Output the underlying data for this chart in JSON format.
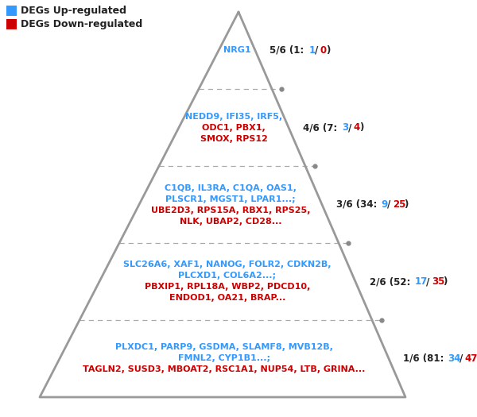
{
  "legend": [
    {
      "label": "DEGs Up-regulated",
      "color": "#3399FF"
    },
    {
      "label": "DEGs Down-regulated",
      "color": "#CC0000"
    }
  ],
  "levels": [
    {
      "level": 5,
      "label_black1": "5/6 (1:",
      "label_up": "1",
      "label_slash": "/",
      "label_down": "0",
      "label_black2": ")",
      "up_lines": [
        "NRG1"
      ],
      "down_lines": []
    },
    {
      "level": 4,
      "label_black1": "4/6 (7:",
      "label_up": "3",
      "label_slash": "/",
      "label_down": "4",
      "label_black2": ")",
      "up_lines": [
        "NEDD9, IFI35, IRF5,"
      ],
      "down_lines": [
        "ODC1, PBX1,",
        "SMOX, RPS12"
      ]
    },
    {
      "level": 3,
      "label_black1": "3/6 (34:",
      "label_up": "9",
      "label_slash": "/",
      "label_down": "25",
      "label_black2": ")",
      "up_lines": [
        "C1QB, IL3RA, C1QA, OAS1,",
        "PLSCR1, MGST1, LPAR1...;"
      ],
      "down_lines": [
        "UBE2D3, RPS15A, RBX1, RPS25,",
        "NLK, UBAP2, CD28..."
      ]
    },
    {
      "level": 2,
      "label_black1": "2/6 (52:",
      "label_up": "17",
      "label_slash": "/",
      "label_down": "35",
      "label_black2": ")",
      "up_lines": [
        "SLC26A6, XAF1, NANOG, FOLR2, CDKN2B,",
        "PLCXD1, COL6A2...;"
      ],
      "down_lines": [
        "PBXIP1, RPL18A, WBP2, PDCD10,",
        "ENDOD1, OA21, BRAP..."
      ]
    },
    {
      "level": 1,
      "label_black1": "1/6 (81:",
      "label_up": "34",
      "label_slash": "/",
      "label_down": "47",
      "label_black2": ")",
      "up_lines": [
        "PLXDC1, PARP9, GSDMA, SLAMF8, MVB12B,",
        "FMNL2, CYP1B1...;"
      ],
      "down_lines": [
        "TAGLN2, SUSD3, MBOAT2, RSC1A1, NUP54, LTB, GRINA..."
      ]
    }
  ],
  "pyramid_color": "#999999",
  "dash_color": "#aaaaaa",
  "dot_color": "#888888",
  "black_color": "#222222",
  "up_color": "#3399FF",
  "down_color": "#CC0000",
  "bg_color": "#ffffff"
}
